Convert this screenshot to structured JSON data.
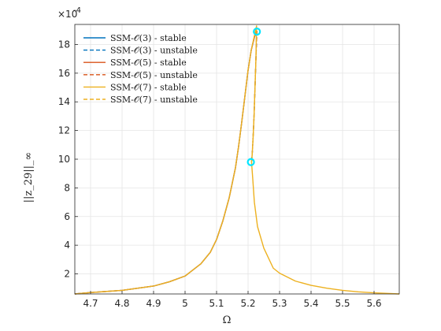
{
  "chart_data": {
    "type": "line",
    "title": "",
    "xlabel": "Ω",
    "ylabel": "||z_29||_∞",
    "y_exponent_label": "×10",
    "y_exponent_power": "-4",
    "xlim": [
      4.65,
      5.68
    ],
    "ylim": [
      0.6,
      19.4
    ],
    "y_scale_note": "values ×10^-4",
    "xticks": [
      4.7,
      4.8,
      4.9,
      5.0,
      5.1,
      5.2,
      5.3,
      5.4,
      5.5,
      5.6
    ],
    "xtick_labels": [
      "4.7",
      "4.8",
      "4.9",
      "5",
      "5.1",
      "5.2",
      "5.3",
      "5.4",
      "5.5",
      "5.6"
    ],
    "yticks": [
      2,
      4,
      6,
      8,
      10,
      12,
      14,
      16,
      18
    ],
    "ytick_labels": [
      "2",
      "4",
      "6",
      "8",
      "10",
      "12",
      "14",
      "16",
      "18"
    ],
    "grid": true,
    "legend_position": "top-left",
    "series": [
      {
        "name": "SSM-𝒪(3) - stable",
        "color": "#0072BD",
        "style": "solid",
        "x": [
          4.65,
          4.7,
          4.8,
          4.9,
          4.95,
          5.0,
          5.05,
          5.08,
          5.1,
          5.12,
          5.14,
          5.16,
          5.17,
          5.18,
          5.19,
          5.2,
          5.21,
          5.22,
          5.225,
          5.228
        ],
        "y": [
          0.6,
          0.7,
          0.85,
          1.15,
          1.45,
          1.85,
          2.7,
          3.5,
          4.4,
          5.7,
          7.3,
          9.4,
          10.9,
          12.6,
          14.4,
          16.2,
          17.6,
          18.5,
          18.85,
          18.95
        ]
      },
      {
        "name": "SSM-𝒪(3) - unstable",
        "color": "#0072BD",
        "style": "dashed",
        "x": [
          5.228,
          5.225,
          5.222,
          5.219,
          5.216,
          5.213,
          5.211
        ],
        "y": [
          18.95,
          17.0,
          15.0,
          13.0,
          11.5,
          10.3,
          9.8
        ]
      },
      {
        "name": "SSM-𝒪(5) - stable",
        "color": "#D95319",
        "style": "solid",
        "x": [
          4.65,
          4.7,
          4.8,
          4.9,
          4.95,
          5.0,
          5.05,
          5.08,
          5.1,
          5.12,
          5.14,
          5.16,
          5.17,
          5.18,
          5.19,
          5.2,
          5.21,
          5.22,
          5.225,
          5.228
        ],
        "y": [
          0.6,
          0.7,
          0.85,
          1.15,
          1.45,
          1.85,
          2.7,
          3.5,
          4.4,
          5.7,
          7.3,
          9.4,
          10.9,
          12.6,
          14.4,
          16.2,
          17.6,
          18.5,
          18.85,
          18.95
        ]
      },
      {
        "name": "SSM-𝒪(5) - unstable",
        "color": "#D95319",
        "style": "dashed",
        "x": [
          5.228,
          5.225,
          5.222,
          5.219,
          5.216,
          5.213,
          5.211
        ],
        "y": [
          18.95,
          17.0,
          15.0,
          13.0,
          11.5,
          10.3,
          9.8
        ]
      },
      {
        "name": "SSM-𝒪(7) - stable",
        "color": "#EDB120",
        "style": "solid",
        "x": [
          4.65,
          4.7,
          4.8,
          4.9,
          4.95,
          5.0,
          5.05,
          5.08,
          5.1,
          5.12,
          5.14,
          5.16,
          5.17,
          5.18,
          5.19,
          5.2,
          5.21,
          5.22,
          5.227,
          5.225,
          5.222,
          5.219,
          5.216,
          5.213,
          5.211,
          5.212,
          5.215,
          5.22,
          5.23,
          5.25,
          5.28,
          5.3,
          5.35,
          5.4,
          5.45,
          5.5,
          5.55,
          5.6,
          5.68
        ],
        "y": [
          0.6,
          0.7,
          0.85,
          1.15,
          1.45,
          1.85,
          2.7,
          3.5,
          4.4,
          5.7,
          7.3,
          9.4,
          10.9,
          12.6,
          14.4,
          16.2,
          17.6,
          18.6,
          19.3,
          17.0,
          15.0,
          13.0,
          11.5,
          10.3,
          9.8,
          9.5,
          8.6,
          7.0,
          5.3,
          3.8,
          2.4,
          2.05,
          1.5,
          1.2,
          1.0,
          0.85,
          0.75,
          0.68,
          0.6
        ]
      },
      {
        "name": "SSM-𝒪(7) - unstable",
        "color": "#EDB120",
        "style": "dashed",
        "x": [
          5.227,
          5.225,
          5.222,
          5.219,
          5.216,
          5.213,
          5.211
        ],
        "y": [
          19.3,
          17.0,
          15.0,
          13.0,
          11.5,
          10.3,
          9.8
        ]
      }
    ],
    "markers": [
      {
        "x": 5.228,
        "y": 18.9,
        "color": "#00E5FF"
      },
      {
        "x": 5.209,
        "y": 9.8,
        "color": "#00E5FF"
      }
    ]
  }
}
